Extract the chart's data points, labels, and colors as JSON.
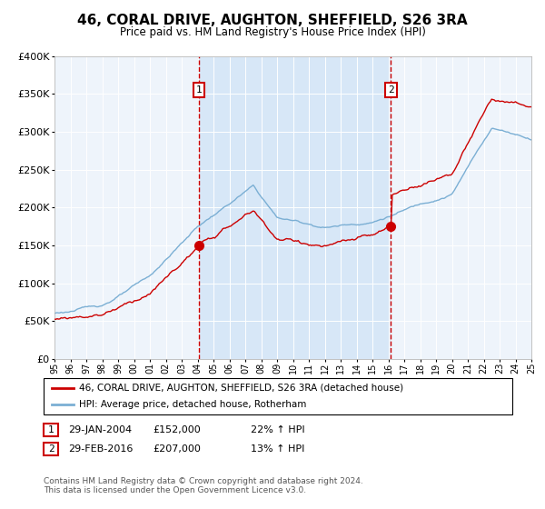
{
  "title": "46, CORAL DRIVE, AUGHTON, SHEFFIELD, S26 3RA",
  "subtitle": "Price paid vs. HM Land Registry's House Price Index (HPI)",
  "legend_line1": "46, CORAL DRIVE, AUGHTON, SHEFFIELD, S26 3RA (detached house)",
  "legend_line2": "HPI: Average price, detached house, Rotherham",
  "transaction1_date": "29-JAN-2004",
  "transaction1_price": "£152,000",
  "transaction1_hpi": "22% ↑ HPI",
  "transaction2_date": "29-FEB-2016",
  "transaction2_price": "£207,000",
  "transaction2_hpi": "13% ↑ HPI",
  "footer": "Contains HM Land Registry data © Crown copyright and database right 2024.\nThis data is licensed under the Open Government Licence v3.0.",
  "red_color": "#cc0000",
  "blue_color": "#7bafd4",
  "shade_color": "#ddeeff",
  "background_color": "#eef4fb",
  "ylim_min": 0,
  "ylim_max": 400000,
  "yticks": [
    0,
    50000,
    100000,
    150000,
    200000,
    250000,
    300000,
    350000,
    400000
  ],
  "x_start_year": 1995,
  "x_end_year": 2025,
  "transaction1_x": 2004.08,
  "transaction2_x": 2016.17
}
